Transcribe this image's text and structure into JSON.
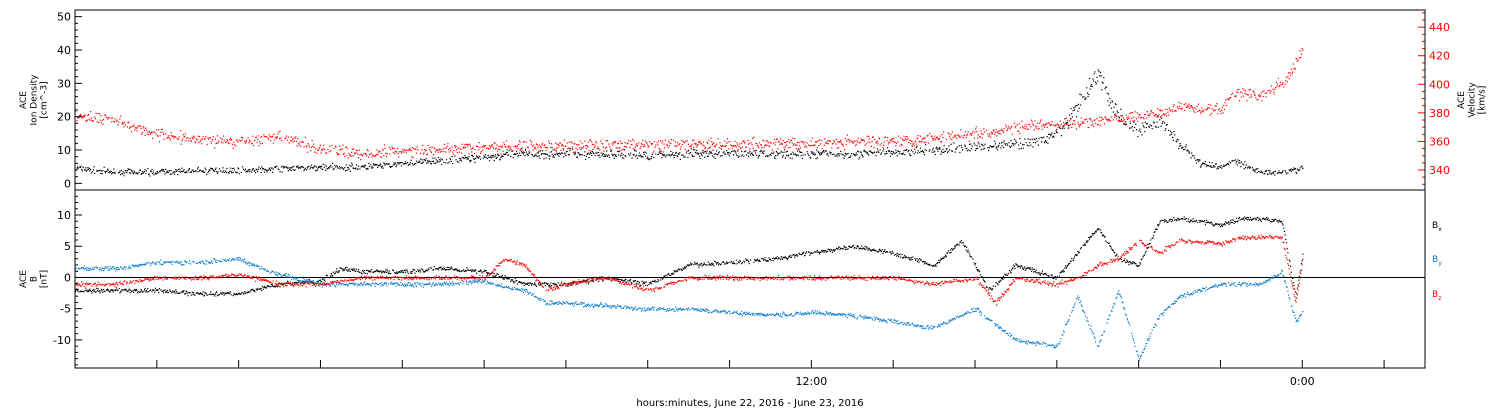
{
  "chart_data": [
    {
      "type": "scatter",
      "panel": "ion-density-and-velocity",
      "title": "",
      "xlabel": "",
      "x_range": [
        "2016-06-21 18:00",
        "2016-06-23 03:00"
      ],
      "ylabel_left": [
        "ACE",
        "Ion Density",
        "[cm^-3]"
      ],
      "ylim_left": [
        -2,
        52
      ],
      "yticks_left": [
        0,
        10,
        20,
        30,
        40,
        50
      ],
      "ylabel_right": [
        "ACE",
        "Velocity",
        "[km/s]"
      ],
      "ylim_right": [
        326,
        452
      ],
      "yticks_right": [
        340,
        360,
        380,
        400,
        420,
        440
      ],
      "series": [
        {
          "axis": "left",
          "color": "#000000",
          "points": [
            [
              "2016-06-21 18:00",
              4.5
            ],
            [
              "2016-06-21 19:00",
              3.5
            ],
            [
              "2016-06-21 20:00",
              3.5
            ],
            [
              "2016-06-21 21:00",
              4
            ],
            [
              "2016-06-21 22:00",
              4
            ],
            [
              "2016-06-21 23:00",
              4.5
            ],
            [
              "2016-06-22 00:00",
              5
            ],
            [
              "2016-06-22 01:00",
              5
            ],
            [
              "2016-06-22 02:00",
              6
            ],
            [
              "2016-06-22 03:00",
              7
            ],
            [
              "2016-06-22 04:00",
              8
            ],
            [
              "2016-06-22 05:00",
              9
            ],
            [
              "2016-06-22 06:00",
              9
            ],
            [
              "2016-06-22 07:00",
              9
            ],
            [
              "2016-06-22 08:00",
              8.5
            ],
            [
              "2016-06-22 09:00",
              9
            ],
            [
              "2016-06-22 10:00",
              9
            ],
            [
              "2016-06-22 11:00",
              9
            ],
            [
              "2016-06-22 12:00",
              9
            ],
            [
              "2016-06-22 13:00",
              9
            ],
            [
              "2016-06-22 14:00",
              9.5
            ],
            [
              "2016-06-22 15:00",
              10
            ],
            [
              "2016-06-22 16:00",
              11
            ],
            [
              "2016-06-22 17:00",
              12
            ],
            [
              "2016-06-22 17:40",
              13
            ],
            [
              "2016-06-22 18:10",
              17
            ],
            [
              "2016-06-22 18:40",
              26
            ],
            [
              "2016-06-22 19:00",
              33
            ],
            [
              "2016-06-22 19:20",
              24
            ],
            [
              "2016-06-22 19:40",
              18
            ],
            [
              "2016-06-22 20:00",
              16
            ],
            [
              "2016-06-22 20:30",
              19
            ],
            [
              "2016-06-22 21:00",
              12
            ],
            [
              "2016-06-22 21:30",
              6
            ],
            [
              "2016-06-22 22:00",
              5
            ],
            [
              "2016-06-22 22:20",
              7
            ],
            [
              "2016-06-22 22:40",
              5
            ],
            [
              "2016-06-22 23:00",
              3.5
            ],
            [
              "2016-06-22 23:30",
              3.5
            ],
            [
              "2016-06-23 00:00",
              4.5
            ]
          ]
        },
        {
          "axis": "right",
          "color": "#ff0000",
          "points": [
            [
              "2016-06-21 18:00",
              378
            ],
            [
              "2016-06-21 19:00",
              375
            ],
            [
              "2016-06-21 20:00",
              365
            ],
            [
              "2016-06-21 21:00",
              362
            ],
            [
              "2016-06-21 22:00",
              360
            ],
            [
              "2016-06-21 23:00",
              363
            ],
            [
              "2016-06-22 00:00",
              355
            ],
            [
              "2016-06-22 01:00",
              352
            ],
            [
              "2016-06-22 02:00",
              354
            ],
            [
              "2016-06-22 03:00",
              355
            ],
            [
              "2016-06-22 04:00",
              356
            ],
            [
              "2016-06-22 05:00",
              357
            ],
            [
              "2016-06-22 06:00",
              357
            ],
            [
              "2016-06-22 07:00",
              358
            ],
            [
              "2016-06-22 08:00",
              358
            ],
            [
              "2016-06-22 09:00",
              358
            ],
            [
              "2016-06-22 10:00",
              358
            ],
            [
              "2016-06-22 11:00",
              359
            ],
            [
              "2016-06-22 12:00",
              359
            ],
            [
              "2016-06-22 13:00",
              360
            ],
            [
              "2016-06-22 14:00",
              361
            ],
            [
              "2016-06-22 15:00",
              363
            ],
            [
              "2016-06-22 16:00",
              366
            ],
            [
              "2016-06-22 17:00",
              370
            ],
            [
              "2016-06-22 18:00",
              372
            ],
            [
              "2016-06-22 19:00",
              374
            ],
            [
              "2016-06-22 20:00",
              378
            ],
            [
              "2016-06-22 20:40",
              382
            ],
            [
              "2016-06-22 21:00",
              385
            ],
            [
              "2016-06-22 21:30",
              384
            ],
            [
              "2016-06-22 22:00",
              382
            ],
            [
              "2016-06-22 22:20",
              395
            ],
            [
              "2016-06-22 22:40",
              393
            ],
            [
              "2016-06-22 23:00",
              392
            ],
            [
              "2016-06-22 23:20",
              398
            ],
            [
              "2016-06-22 23:40",
              405
            ],
            [
              "2016-06-23 00:00",
              425
            ]
          ]
        }
      ]
    },
    {
      "type": "scatter",
      "panel": "magnetic-field-components",
      "title": "",
      "xlabel": "hours:minutes, June 22, 2016 - June 23, 2016",
      "x_range": [
        "2016-06-21 18:00",
        "2016-06-23 03:00"
      ],
      "xticks": [
        {
          "t": "2016-06-22 12:00",
          "label": "12:00"
        },
        {
          "t": "2016-06-23 00:00",
          "label": "0:00"
        }
      ],
      "ylabel": [
        "ACE",
        "B",
        "[nT]"
      ],
      "ylim": [
        -14.5,
        14
      ],
      "yticks": [
        -10,
        -5,
        0,
        5,
        10
      ],
      "zero_line": true,
      "legend": [
        "B_x",
        "B_y",
        "B_z"
      ],
      "series": [
        {
          "name": "B",
          "sub": "x",
          "color": "#000000",
          "points": [
            [
              "2016-06-21 18:00",
              -2
            ],
            [
              "2016-06-21 20:00",
              -2
            ],
            [
              "2016-06-21 21:00",
              -2.5
            ],
            [
              "2016-06-21 22:00",
              -2.5
            ],
            [
              "2016-06-21 23:00",
              -1
            ],
            [
              "2016-06-22 00:00",
              -0.5
            ],
            [
              "2016-06-22 00:30",
              1.5
            ],
            [
              "2016-06-22 01:00",
              1
            ],
            [
              "2016-06-22 02:00",
              1
            ],
            [
              "2016-06-22 03:00",
              1.5
            ],
            [
              "2016-06-22 04:00",
              1
            ],
            [
              "2016-06-22 04:30",
              0
            ],
            [
              "2016-06-22 05:00",
              -1
            ],
            [
              "2016-06-22 06:00",
              -1
            ],
            [
              "2016-06-22 07:00",
              0
            ],
            [
              "2016-06-22 08:00",
              -1
            ],
            [
              "2016-06-22 09:00",
              2
            ],
            [
              "2016-06-22 10:00",
              2.5
            ],
            [
              "2016-06-22 11:00",
              3
            ],
            [
              "2016-06-22 12:00",
              4
            ],
            [
              "2016-06-22 13:00",
              5
            ],
            [
              "2016-06-22 14:00",
              4
            ],
            [
              "2016-06-22 15:00",
              2
            ],
            [
              "2016-06-22 15:40",
              6
            ],
            [
              "2016-06-22 16:20",
              -2
            ],
            [
              "2016-06-22 17:00",
              2
            ],
            [
              "2016-06-22 18:00",
              0
            ],
            [
              "2016-06-22 18:30",
              4
            ],
            [
              "2016-06-22 19:00",
              8
            ],
            [
              "2016-06-22 19:30",
              3
            ],
            [
              "2016-06-22 20:00",
              2
            ],
            [
              "2016-06-22 20:30",
              9
            ],
            [
              "2016-06-22 21:00",
              9.5
            ],
            [
              "2016-06-22 22:00",
              8.5
            ],
            [
              "2016-06-22 22:30",
              9.5
            ],
            [
              "2016-06-22 23:00",
              9.5
            ],
            [
              "2016-06-22 23:30",
              9
            ],
            [
              "2016-06-22 23:50",
              -3
            ],
            [
              "2016-06-23 00:00",
              3.5
            ]
          ]
        },
        {
          "name": "B",
          "sub": "y",
          "color": "#0a7cd0",
          "points": [
            [
              "2016-06-21 18:00",
              1.5
            ],
            [
              "2016-06-21 19:00",
              1.5
            ],
            [
              "2016-06-21 20:00",
              2.5
            ],
            [
              "2016-06-21 21:00",
              2.5
            ],
            [
              "2016-06-21 22:00",
              3
            ],
            [
              "2016-06-21 23:00",
              0.5
            ],
            [
              "2016-06-22 00:00",
              -1
            ],
            [
              "2016-06-22 01:00",
              -1
            ],
            [
              "2016-06-22 02:00",
              -1
            ],
            [
              "2016-06-22 03:00",
              -1
            ],
            [
              "2016-06-22 04:00",
              -0.5
            ],
            [
              "2016-06-22 04:30",
              -1.5
            ],
            [
              "2016-06-22 05:00",
              -2
            ],
            [
              "2016-06-22 05:30",
              -4
            ],
            [
              "2016-06-22 06:00",
              -4
            ],
            [
              "2016-06-22 07:00",
              -4.5
            ],
            [
              "2016-06-22 08:00",
              -5
            ],
            [
              "2016-06-22 09:00",
              -5
            ],
            [
              "2016-06-22 10:00",
              -5.5
            ],
            [
              "2016-06-22 11:00",
              -6
            ],
            [
              "2016-06-22 12:00",
              -5.5
            ],
            [
              "2016-06-22 13:00",
              -6
            ],
            [
              "2016-06-22 14:00",
              -7
            ],
            [
              "2016-06-22 15:00",
              -8
            ],
            [
              "2016-06-22 16:00",
              -5
            ],
            [
              "2016-06-22 17:00",
              -10
            ],
            [
              "2016-06-22 18:00",
              -11
            ],
            [
              "2016-06-22 18:30",
              -3
            ],
            [
              "2016-06-22 19:00",
              -11
            ],
            [
              "2016-06-22 19:30",
              -2
            ],
            [
              "2016-06-22 20:00",
              -13
            ],
            [
              "2016-06-22 20:30",
              -6
            ],
            [
              "2016-06-22 21:00",
              -3
            ],
            [
              "2016-06-22 21:30",
              -2
            ],
            [
              "2016-06-22 22:00",
              -1
            ],
            [
              "2016-06-22 22:30",
              -1
            ],
            [
              "2016-06-22 23:00",
              -1
            ],
            [
              "2016-06-22 23:30",
              1
            ],
            [
              "2016-06-22 23:50",
              -7
            ],
            [
              "2016-06-23 00:00",
              -5.5
            ]
          ]
        },
        {
          "name": "B",
          "sub": "z",
          "color": "#ff0000",
          "points": [
            [
              "2016-06-21 18:00",
              -1
            ],
            [
              "2016-06-21 19:00",
              -1
            ],
            [
              "2016-06-21 20:00",
              0
            ],
            [
              "2016-06-21 21:00",
              0
            ],
            [
              "2016-06-21 22:00",
              0.5
            ],
            [
              "2016-06-21 23:00",
              -1
            ],
            [
              "2016-06-22 00:00",
              -1
            ],
            [
              "2016-06-22 01:00",
              0
            ],
            [
              "2016-06-22 02:00",
              0
            ],
            [
              "2016-06-22 03:00",
              0
            ],
            [
              "2016-06-22 04:00",
              0
            ],
            [
              "2016-06-22 04:30",
              3
            ],
            [
              "2016-06-22 05:00",
              2
            ],
            [
              "2016-06-22 05:30",
              -2
            ],
            [
              "2016-06-22 06:00",
              -1
            ],
            [
              "2016-06-22 07:00",
              0
            ],
            [
              "2016-06-22 08:00",
              -2
            ],
            [
              "2016-06-22 09:00",
              0
            ],
            [
              "2016-06-22 10:00",
              0
            ],
            [
              "2016-06-22 11:00",
              0
            ],
            [
              "2016-06-22 12:00",
              0
            ],
            [
              "2016-06-22 13:00",
              0
            ],
            [
              "2016-06-22 14:00",
              0
            ],
            [
              "2016-06-22 15:00",
              -1
            ],
            [
              "2016-06-22 16:00",
              0
            ],
            [
              "2016-06-22 16:30",
              -4
            ],
            [
              "2016-06-22 17:00",
              0
            ],
            [
              "2016-06-22 18:00",
              -1
            ],
            [
              "2016-06-22 18:30",
              0
            ],
            [
              "2016-06-22 19:00",
              2
            ],
            [
              "2016-06-22 19:30",
              3
            ],
            [
              "2016-06-22 20:00",
              6
            ],
            [
              "2016-06-22 20:30",
              4
            ],
            [
              "2016-06-22 21:00",
              6
            ],
            [
              "2016-06-22 22:00",
              5.5
            ],
            [
              "2016-06-22 22:30",
              6.5
            ],
            [
              "2016-06-22 23:00",
              6.5
            ],
            [
              "2016-06-22 23:30",
              6.5
            ],
            [
              "2016-06-22 23:50",
              -4
            ],
            [
              "2016-06-23 00:00",
              2.5
            ]
          ]
        }
      ]
    }
  ]
}
